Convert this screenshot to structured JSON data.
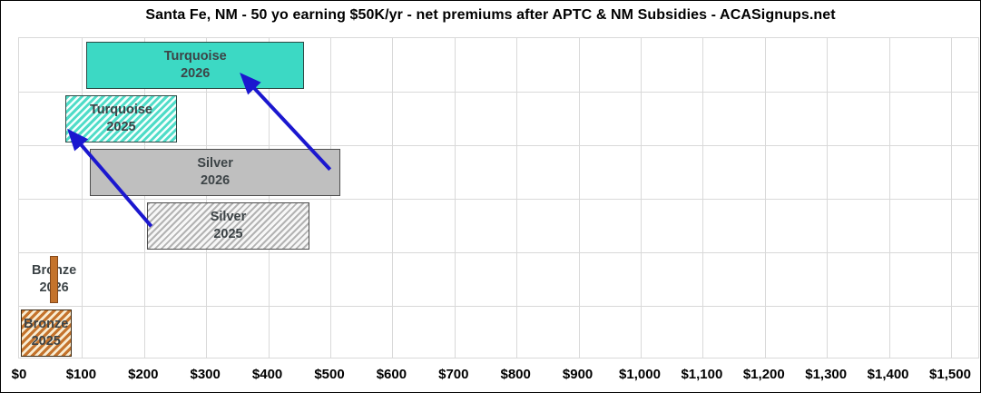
{
  "chart_data": {
    "type": "bar",
    "subtype": "horizontal-range-bars",
    "title": "Santa Fe, NM - 50 yo earning $50K/yr - net premiums after APTC & NM Subsidies - ACASignups.net",
    "xlabel": "",
    "ylabel": "",
    "xlim": [
      0,
      1500
    ],
    "x_tick_values": [
      0,
      100,
      200,
      300,
      400,
      500,
      600,
      700,
      800,
      900,
      1000,
      1100,
      1200,
      1300,
      1400,
      1500
    ],
    "x_tick_labels": [
      "$0",
      "$100",
      "$200",
      "$300",
      "$400",
      "$500",
      "$600",
      "$700",
      "$800",
      "$900",
      "$1,000",
      "$1,100",
      "$1,200",
      "$1,300",
      "$1,400",
      "$1,500"
    ],
    "grid": true,
    "legend": "none",
    "series": [
      {
        "name": "Turquoise",
        "year": "2026",
        "low": 107,
        "high": 458,
        "style": "solid",
        "color_key": "turquoise",
        "label_behind": false
      },
      {
        "name": "Turquoise",
        "year": "2025",
        "low": 73,
        "high": 253,
        "style": "hatched",
        "color_key": "turquoise",
        "label_behind": false
      },
      {
        "name": "Silver",
        "year": "2026",
        "low": 113,
        "high": 516,
        "style": "solid",
        "color_key": "silver",
        "label_behind": false
      },
      {
        "name": "Silver",
        "year": "2025",
        "low": 204,
        "high": 467,
        "style": "hatched",
        "color_key": "silver",
        "label_behind": false
      },
      {
        "name": "Bronze",
        "year": "2026",
        "low": 48,
        "high": 62,
        "style": "solid",
        "color_key": "bronze",
        "label_behind": true
      },
      {
        "name": "Bronze",
        "year": "2025",
        "low": 1,
        "high": 83,
        "style": "hatched",
        "color_key": "bronze",
        "label_behind": false
      }
    ],
    "annotations": {
      "arrow_color": "#1b17cf",
      "arrows": [
        {
          "name": "silver-2026-to-turquoise-2026",
          "from": {
            "usd": 501,
            "row": 2.47
          },
          "to": {
            "usd": 361,
            "row": 0.73
          }
        },
        {
          "name": "silver-2025-to-turquoise-2025",
          "from": {
            "usd": 213,
            "row": 3.53
          },
          "to": {
            "usd": 83,
            "row": 1.78
          }
        }
      ]
    },
    "colors": {
      "turquoise": "#3cd9c4",
      "silver": "#bfbfbf",
      "bronze": "#c4732c",
      "grid": "#d9d9d9",
      "bar_label_text": "#3d4447",
      "axis_text": "#000000",
      "title_text": "#000000"
    }
  }
}
